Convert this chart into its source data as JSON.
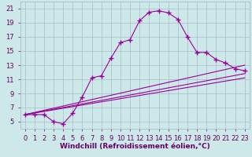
{
  "xlabel": "Windchill (Refroidissement éolien,°C)",
  "bg_color": "#cce8e8",
  "line_color": "#990099",
  "grid_color": "#aabbcc",
  "axis_label_color": "#660066",
  "tick_color": "#660066",
  "curve1_x": [
    0,
    1,
    2,
    3,
    4,
    5,
    6,
    7,
    8,
    9,
    10,
    11,
    12,
    13,
    14,
    15,
    16,
    17,
    18,
    19,
    20,
    21,
    22,
    23
  ],
  "curve1_y": [
    6.0,
    6.0,
    6.0,
    5.0,
    4.7,
    6.2,
    8.5,
    11.2,
    11.5,
    14.0,
    16.2,
    16.6,
    19.3,
    20.5,
    20.7,
    20.4,
    19.5,
    17.0,
    14.8,
    14.8,
    13.8,
    13.3,
    12.5,
    12.2
  ],
  "line2_x0": 0,
  "line2_y0": 6.0,
  "line2_x1": 23,
  "line2_y1": 13.0,
  "line3_x0": 0,
  "line3_y0": 6.0,
  "line3_x1": 23,
  "line3_y1": 11.8,
  "line4_x0": 0,
  "line4_y0": 6.0,
  "line4_x1": 23,
  "line4_y1": 11.2,
  "xlim": [
    -0.5,
    23.5
  ],
  "ylim": [
    4.0,
    22.0
  ],
  "xticks": [
    0,
    1,
    2,
    3,
    4,
    5,
    6,
    7,
    8,
    9,
    10,
    11,
    12,
    13,
    14,
    15,
    16,
    17,
    18,
    19,
    20,
    21,
    22,
    23
  ],
  "yticks": [
    5,
    7,
    9,
    11,
    13,
    15,
    17,
    19,
    21
  ],
  "xlabel_fontsize": 6.5,
  "tick_fontsize": 6.0,
  "figwidth": 3.2,
  "figheight": 2.0,
  "dpi": 100
}
